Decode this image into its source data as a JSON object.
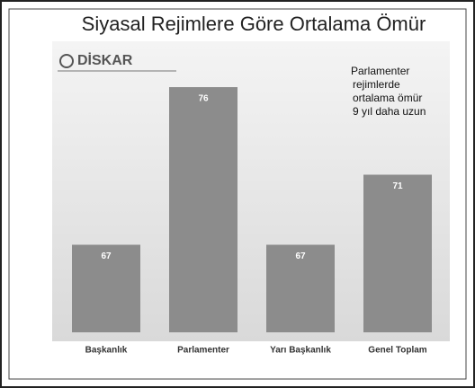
{
  "chart_data": {
    "type": "bar",
    "title": "Siyasal Rejimlere Göre Ortalama Ömür",
    "logo": "DİSKAR",
    "annotation": [
      "Parlamenter",
      "rejimlerde",
      "ortalama ömür",
      "9 yıl daha uzun"
    ],
    "categories": [
      "Başkanlık",
      "Parlamenter",
      "Yarı Başkanlık",
      "Genel Toplam"
    ],
    "values": [
      67,
      76,
      67,
      71
    ],
    "color": "#8c8c8c",
    "ylim": [
      62,
      78
    ]
  }
}
